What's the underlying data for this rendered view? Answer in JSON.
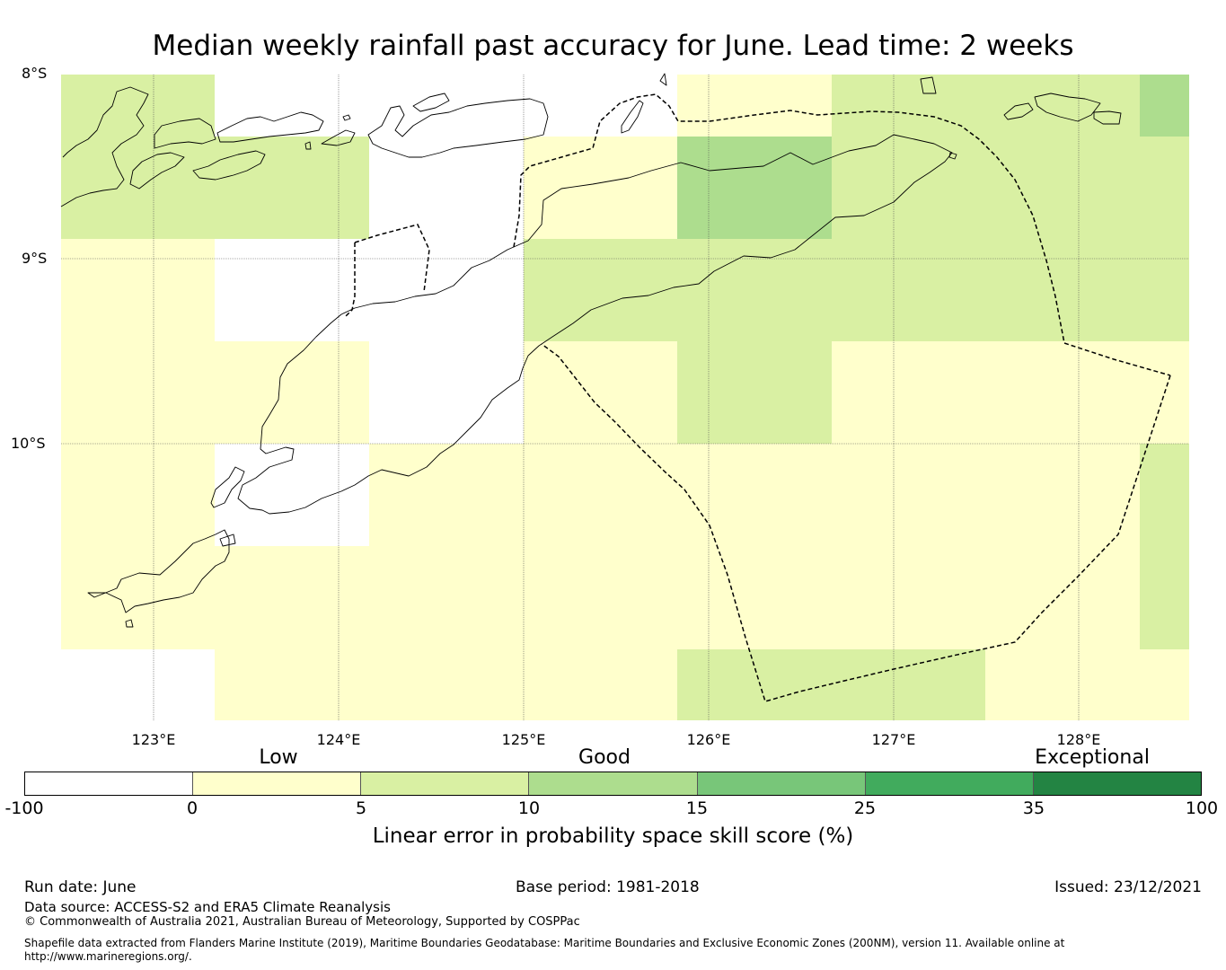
{
  "title": "Median weekly rainfall past accuracy for June. Lead time: 2 weeks",
  "map": {
    "lat_labels": [
      "8°S",
      "9°S",
      "10°S"
    ],
    "lon_labels": [
      "123°E",
      "124°E",
      "125°E",
      "126°E",
      "127°E",
      "128°E"
    ],
    "colors": {
      "below_0": "#ffffff",
      "0_5": "#ffffcc",
      "5_10": "#d9f0a3",
      "10_15": "#addd8e",
      "15_25": "#78c679",
      "25_35": "#41ab5d",
      "35_100": "#238443"
    },
    "features": [
      "coastline",
      "maritime-boundary-dashed",
      "graticule"
    ]
  },
  "legend": {
    "categories": [
      "Low",
      "Good",
      "Exceptional"
    ],
    "ticks": [
      "-100",
      "0",
      "5",
      "10",
      "15",
      "25",
      "35",
      "100"
    ],
    "label": "Linear error in probability space skill score (%)"
  },
  "footer": {
    "run_date": "Run date: June",
    "base_period": "Base period: 1981-2018",
    "issued": "Issued: 23/12/2021",
    "data_source": "Data source: ACCESS-S2 and ERA5 Climate Reanalysis",
    "copyright": "© Commonwealth of Australia 2021, Australian Bureau of Meteorology, Supported by COSPPac",
    "shapefile_1": "Shapefile data extracted from Flanders Marine Institute (2019), Maritime Boundaries Geodatabase: Maritime Boundaries and Exclusive Economic Zones (200NM), version 11. Available online at",
    "shapefile_2": "http://www.marineregions.org/."
  }
}
